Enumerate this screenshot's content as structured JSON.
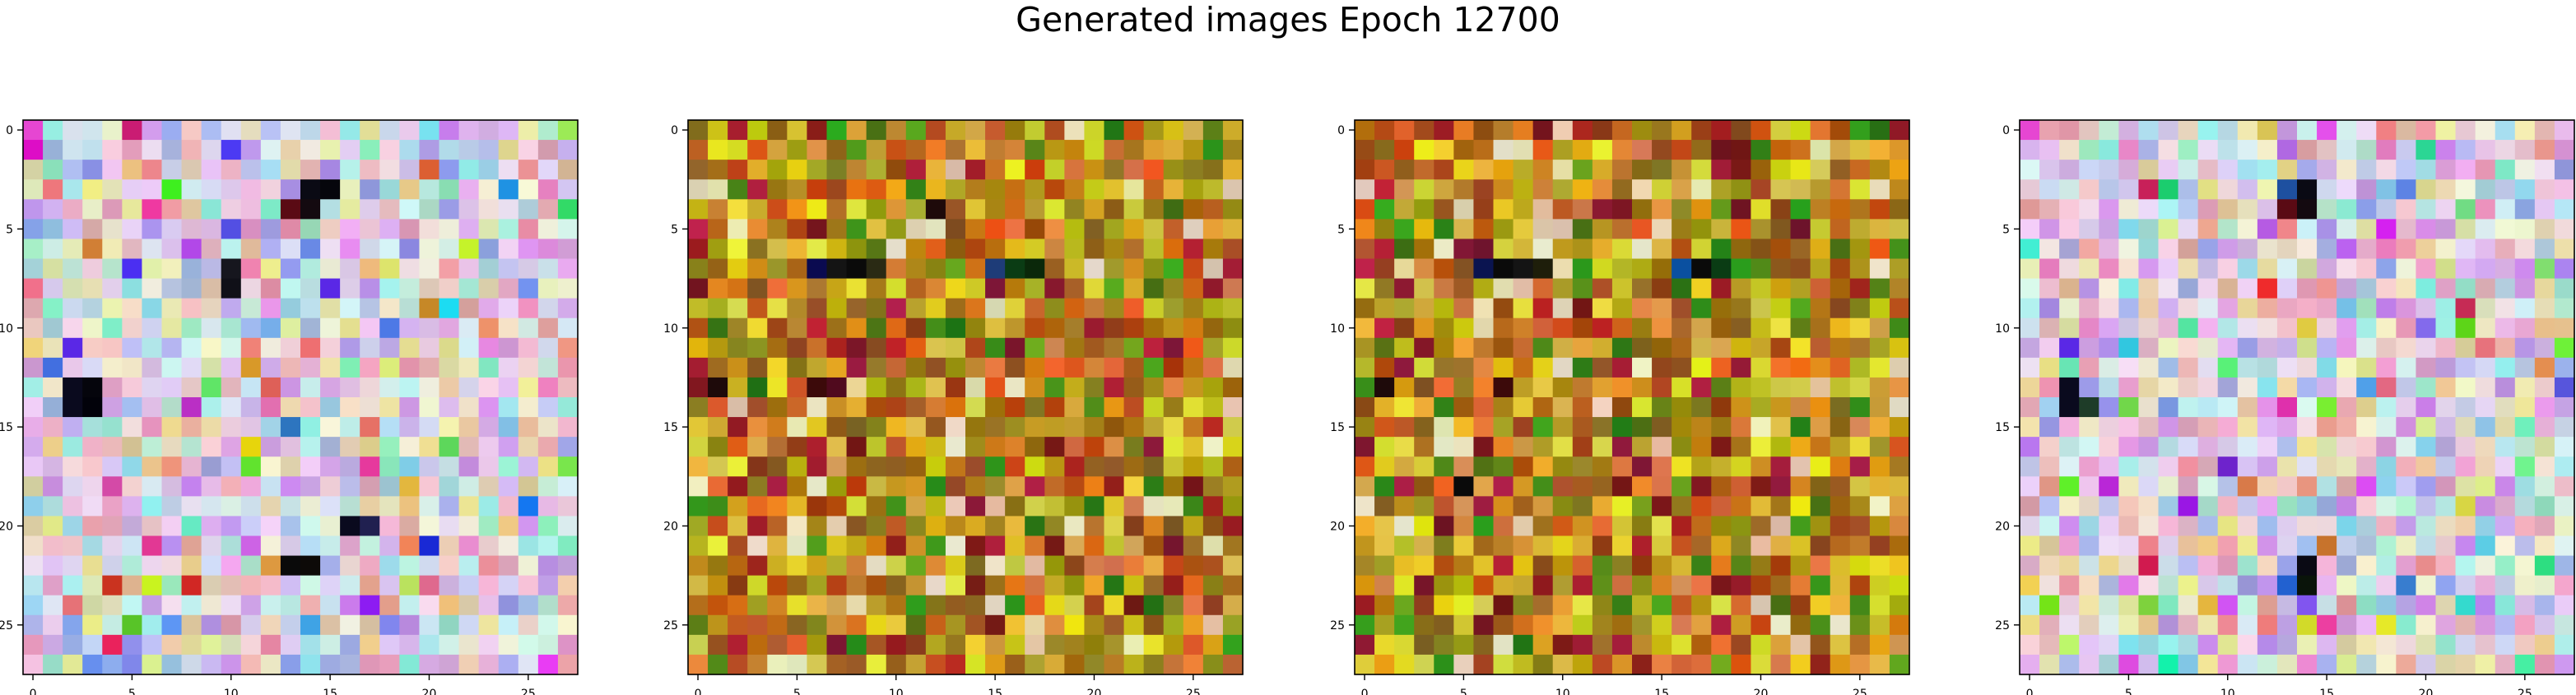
{
  "title": "Generated images Epoch 12700",
  "chart_data": [
    {
      "type": "heatmap",
      "rows": 28,
      "cols": 28,
      "xticks": [
        0,
        5,
        10,
        15,
        20,
        25
      ],
      "yticks": [
        0,
        5,
        10,
        15,
        20,
        25
      ],
      "xlim": [
        -0.5,
        27.5
      ],
      "ylim": [
        27.5,
        -0.5
      ],
      "palette": "pastel-violet",
      "highlights": [
        {
          "r": 3,
          "c": 14,
          "color": "#0a0a14"
        },
        {
          "r": 3,
          "c": 15,
          "color": "#06060c"
        },
        {
          "r": 4,
          "c": 13,
          "color": "#5a0a14"
        },
        {
          "r": 4,
          "c": 14,
          "color": "#140a10"
        },
        {
          "r": 7,
          "c": 10,
          "color": "#16161e"
        },
        {
          "r": 8,
          "c": 10,
          "color": "#101018"
        },
        {
          "r": 13,
          "c": 2,
          "color": "#0a0a1e"
        },
        {
          "r": 13,
          "c": 3,
          "color": "#05050c"
        },
        {
          "r": 14,
          "c": 2,
          "color": "#0a0a1e"
        },
        {
          "r": 14,
          "c": 3,
          "color": "#02020a"
        },
        {
          "r": 20,
          "c": 16,
          "color": "#0a0a1e"
        },
        {
          "r": 20,
          "c": 17,
          "color": "#202050"
        },
        {
          "r": 22,
          "c": 13,
          "color": "#0a0a0a"
        },
        {
          "r": 22,
          "c": 14,
          "color": "#0d0a08"
        },
        {
          "r": 11,
          "c": 2,
          "color": "#5a28e6"
        },
        {
          "r": 8,
          "c": 15,
          "color": "#5a28e6"
        },
        {
          "r": 0,
          "c": 0,
          "color": "#e646d2"
        }
      ]
    },
    {
      "type": "heatmap",
      "rows": 28,
      "cols": 28,
      "xticks": [
        0,
        5,
        10,
        15,
        20,
        25
      ],
      "yticks": [
        0,
        5,
        10,
        15,
        20,
        25
      ],
      "xlim": [
        -0.5,
        27.5
      ],
      "ylim": [
        27.5,
        -0.5
      ],
      "palette": "warm-olive",
      "highlights": [
        {
          "r": 7,
          "c": 6,
          "color": "#0a0a50"
        },
        {
          "r": 7,
          "c": 7,
          "color": "#141414"
        },
        {
          "r": 7,
          "c": 8,
          "color": "#0a0a0a"
        },
        {
          "r": 7,
          "c": 9,
          "color": "#2a2a14"
        },
        {
          "r": 7,
          "c": 15,
          "color": "#1e3c78"
        },
        {
          "r": 7,
          "c": 16,
          "color": "#0a3c14"
        },
        {
          "r": 7,
          "c": 17,
          "color": "#0a280a"
        },
        {
          "r": 13,
          "c": 1,
          "color": "#1e0a0a"
        },
        {
          "r": 13,
          "c": 6,
          "color": "#3c0a0a"
        },
        {
          "r": 13,
          "c": 7,
          "color": "#500a1e"
        },
        {
          "r": 4,
          "c": 12,
          "color": "#1e0a0a"
        }
      ]
    },
    {
      "type": "heatmap",
      "rows": 28,
      "cols": 28,
      "xticks": [
        0,
        5,
        10,
        15,
        20,
        25
      ],
      "yticks": [
        0,
        5,
        10,
        15,
        20,
        25
      ],
      "xlim": [
        -0.5,
        27.5
      ],
      "ylim": [
        27.5,
        -0.5
      ],
      "palette": "warm-olive",
      "highlights": [
        {
          "r": 7,
          "c": 6,
          "color": "#0a1450"
        },
        {
          "r": 7,
          "c": 7,
          "color": "#0a0a0a"
        },
        {
          "r": 7,
          "c": 8,
          "color": "#141414"
        },
        {
          "r": 7,
          "c": 9,
          "color": "#1e1e0a"
        },
        {
          "r": 7,
          "c": 16,
          "color": "#0a50a0"
        },
        {
          "r": 7,
          "c": 17,
          "color": "#0a0a0a"
        },
        {
          "r": 7,
          "c": 18,
          "color": "#0a3c14"
        },
        {
          "r": 13,
          "c": 1,
          "color": "#1e0a0a"
        },
        {
          "r": 13,
          "c": 7,
          "color": "#3c0a0a"
        },
        {
          "r": 18,
          "c": 5,
          "color": "#0a0a0a"
        }
      ]
    },
    {
      "type": "heatmap",
      "rows": 28,
      "cols": 28,
      "xticks": [
        0,
        5,
        10,
        15,
        20,
        25
      ],
      "yticks": [
        0,
        5,
        10,
        15,
        20,
        25
      ],
      "xlim": [
        -0.5,
        27.5
      ],
      "ylim": [
        27.5,
        -0.5
      ],
      "palette": "pastel-violet",
      "highlights": [
        {
          "r": 3,
          "c": 14,
          "color": "#0a0a14"
        },
        {
          "r": 3,
          "c": 13,
          "color": "#1e50a0"
        },
        {
          "r": 4,
          "c": 13,
          "color": "#5a0a14"
        },
        {
          "r": 4,
          "c": 14,
          "color": "#140a10"
        },
        {
          "r": 13,
          "c": 2,
          "color": "#0a0a1e"
        },
        {
          "r": 14,
          "c": 2,
          "color": "#0a0a1e"
        },
        {
          "r": 14,
          "c": 3,
          "color": "#1e3c28"
        },
        {
          "r": 22,
          "c": 14,
          "color": "#0a0a14"
        },
        {
          "r": 23,
          "c": 14,
          "color": "#0a140a"
        },
        {
          "r": 11,
          "c": 2,
          "color": "#5a28e6"
        },
        {
          "r": 0,
          "c": 0,
          "color": "#e646d2"
        }
      ]
    }
  ]
}
